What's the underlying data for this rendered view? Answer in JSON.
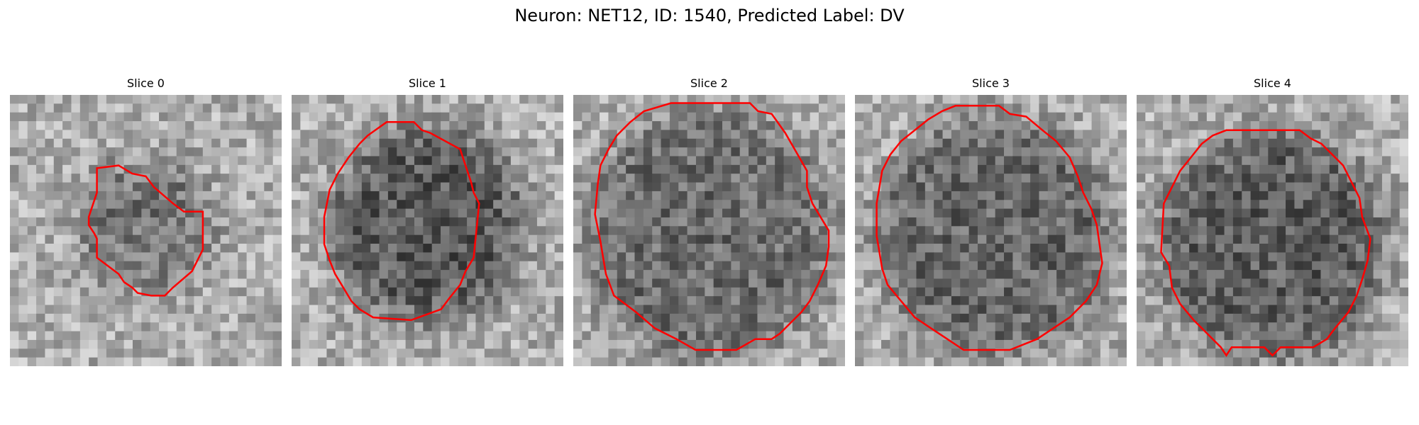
{
  "figure": {
    "title": "Neuron: NET12, ID: 1540, Predicted Label: DV"
  },
  "panels": [
    {
      "title": "Slice 0"
    },
    {
      "title": "Slice 1"
    },
    {
      "title": "Slice 2"
    },
    {
      "title": "Slice 3"
    },
    {
      "title": "Slice 4"
    }
  ],
  "colors": {
    "contour": "#ff0000",
    "colormap": "grayscale"
  }
}
